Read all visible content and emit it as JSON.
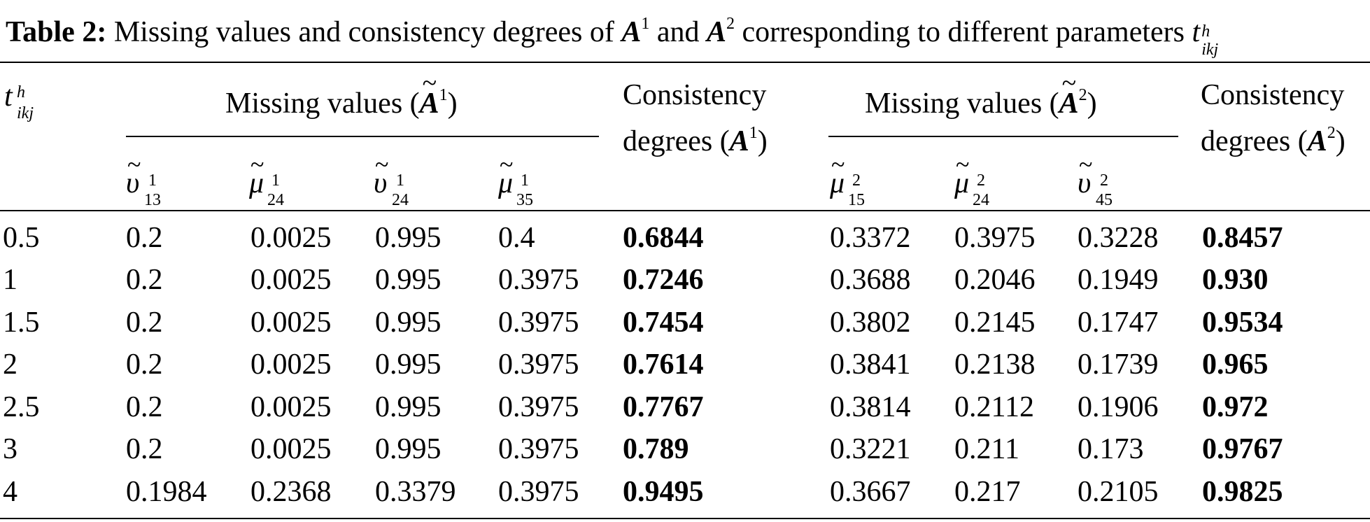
{
  "caption": {
    "label": "Table 2:",
    "text_part1": "Missing values and consistency degrees of",
    "a_symbol": "A",
    "a1_sup": "1",
    "and": "and",
    "a2_sup": "2",
    "text_part2": "corresponding to different parameters",
    "param_symbol": "t",
    "param_sup": "h",
    "param_sub": "ikj"
  },
  "header": {
    "param_symbol": "t",
    "param_sup": "h",
    "param_sub": "ikj",
    "group1_text": "Missing values (",
    "group1_sup": "1",
    "group2_text": "Missing values (",
    "group2_sup": "2",
    "a_symbol": "A",
    "tilde": "~",
    "close": ")",
    "consistency_line1": "Consistency",
    "consistency_line2": "degrees (",
    "cons1_sup": "1",
    "cons2_sup": "2",
    "subcols": [
      {
        "base": "υ",
        "sup": "1",
        "sub": "13"
      },
      {
        "base": "μ",
        "sup": "1",
        "sub": "24"
      },
      {
        "base": "υ",
        "sup": "1",
        "sub": "24"
      },
      {
        "base": "μ",
        "sup": "1",
        "sub": "35"
      },
      {
        "base": "μ",
        "sup": "2",
        "sub": "15"
      },
      {
        "base": "μ",
        "sup": "2",
        "sub": "24"
      },
      {
        "base": "υ",
        "sup": "2",
        "sub": "45"
      }
    ]
  },
  "rows": [
    [
      "0.5",
      "0.2",
      "0.0025",
      "0.995",
      "0.4",
      "0.6844",
      "0.3372",
      "0.3975",
      "0.3228",
      "0.8457"
    ],
    [
      "1",
      "0.2",
      "0.0025",
      "0.995",
      "0.3975",
      "0.7246",
      "0.3688",
      "0.2046",
      "0.1949",
      "0.930"
    ],
    [
      "1.5",
      "0.2",
      "0.0025",
      "0.995",
      "0.3975",
      "0.7454",
      "0.3802",
      "0.2145",
      "0.1747",
      "0.9534"
    ],
    [
      "2",
      "0.2",
      "0.0025",
      "0.995",
      "0.3975",
      "0.7614",
      "0.3841",
      "0.2138",
      "0.1739",
      "0.965"
    ],
    [
      "2.5",
      "0.2",
      "0.0025",
      "0.995",
      "0.3975",
      "0.7767",
      "0.3814",
      "0.2112",
      "0.1906",
      "0.972"
    ],
    [
      "3",
      "0.2",
      "0.0025",
      "0.995",
      "0.3975",
      "0.789",
      "0.3221",
      "0.211",
      "0.173",
      "0.9767"
    ],
    [
      "4",
      "0.1984",
      "0.2368",
      "0.3379",
      "0.3975",
      "0.9495",
      "0.3667",
      "0.217",
      "0.2105",
      "0.9825"
    ]
  ]
}
